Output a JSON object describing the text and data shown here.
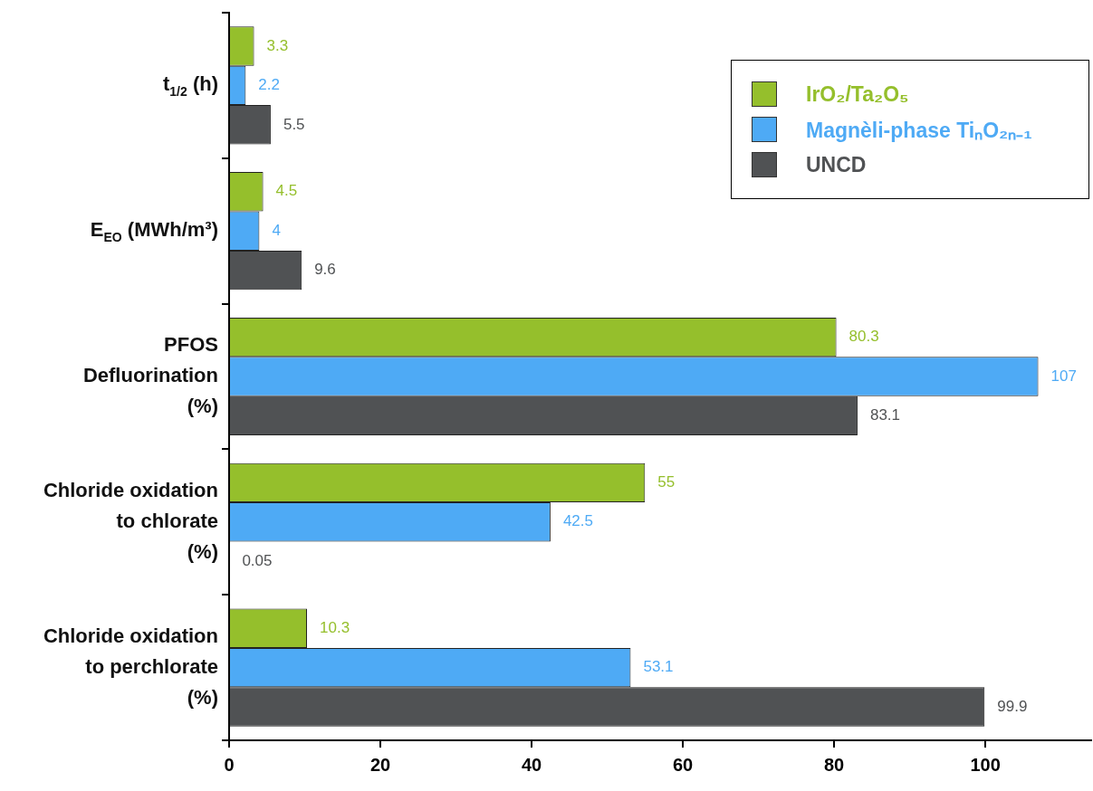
{
  "chart_data": {
    "type": "bar",
    "orientation": "horizontal",
    "categories": [
      "t$_{1/2}$ (h)",
      "E$_{EO}$ (MWh/m³)",
      "PFOS\nDefluorination\n(%)",
      "Chloride oxidation\nto chlorate\n(%)",
      "Chloride oxidation\nto perchlorate\n(%)"
    ],
    "series": [
      {
        "name": "IrO₂/Ta₂O₅",
        "color": "#95bf2c",
        "values": [
          3.3,
          4.5,
          80.3,
          55,
          10.3
        ]
      },
      {
        "name": "Magnèli-phase TiₙO₂ₙ₋₁",
        "color": "#4eaaf5",
        "values": [
          2.2,
          4,
          107,
          42.5,
          53.1
        ]
      },
      {
        "name": "UNCD",
        "color": "#505254",
        "values": [
          5.5,
          9.6,
          83.1,
          0.05,
          99.9
        ]
      }
    ],
    "xlim": [
      0,
      114
    ],
    "xticks": [
      0,
      20,
      40,
      60,
      80,
      100
    ],
    "grid": false,
    "legend": "top right",
    "data_labels": true
  }
}
